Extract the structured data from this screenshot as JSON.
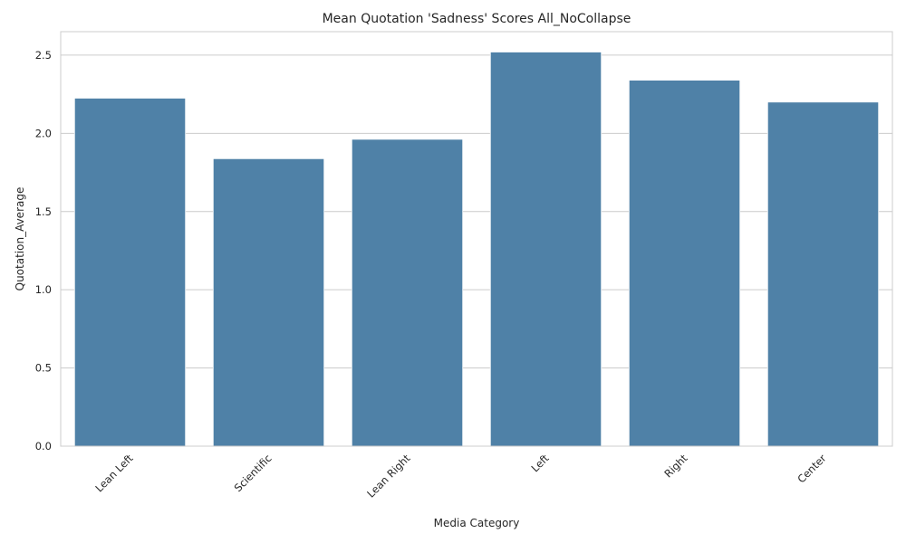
{
  "chart_data": {
    "type": "bar",
    "title": "Mean Quotation 'Sadness' Scores All_NoCollapse",
    "xlabel": "Media Category",
    "ylabel": "Quotation_Average",
    "categories": [
      "Lean Left",
      "Scientific",
      "Lean Right",
      "Left",
      "Right",
      "Center"
    ],
    "values": [
      2.225,
      1.838,
      1.962,
      2.52,
      2.34,
      2.2
    ],
    "ylim": [
      0,
      2.65
    ],
    "yticks": [
      "0.0",
      "0.5",
      "1.0",
      "1.5",
      "2.0",
      "2.5"
    ],
    "grid": true,
    "bar_color": "#4f81a7"
  }
}
